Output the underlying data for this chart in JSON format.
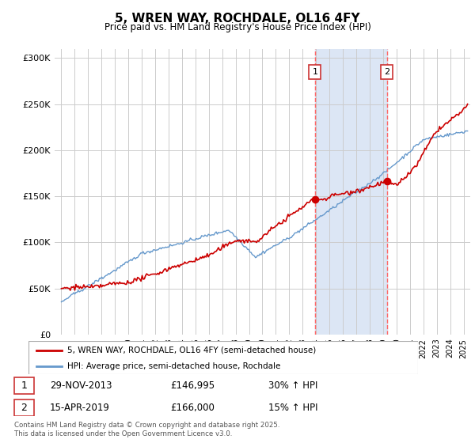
{
  "title": "5, WREN WAY, ROCHDALE, OL16 4FY",
  "subtitle": "Price paid vs. HM Land Registry's House Price Index (HPI)",
  "ylabel_ticks": [
    "£0",
    "£50K",
    "£100K",
    "£150K",
    "£200K",
    "£250K",
    "£300K"
  ],
  "ytick_values": [
    0,
    50000,
    100000,
    150000,
    200000,
    250000,
    300000
  ],
  "ylim": [
    0,
    310000
  ],
  "xlim_start": 1994.5,
  "xlim_end": 2025.5,
  "red_color": "#cc0000",
  "blue_color": "#6699cc",
  "shaded_color": "#dce6f5",
  "marker1_x": 2013.92,
  "marker2_x": 2019.29,
  "marker1_y": 146995,
  "marker2_y": 166000,
  "legend1": "5, WREN WAY, ROCHDALE, OL16 4FY (semi-detached house)",
  "legend2": "HPI: Average price, semi-detached house, Rochdale",
  "table_rows": [
    {
      "num": "1",
      "date": "29-NOV-2013",
      "price": "£146,995",
      "change": "30% ↑ HPI"
    },
    {
      "num": "2",
      "date": "15-APR-2019",
      "price": "£166,000",
      "change": "15% ↑ HPI"
    }
  ],
  "footer": "Contains HM Land Registry data © Crown copyright and database right 2025.\nThis data is licensed under the Open Government Licence v3.0.",
  "background_color": "#ffffff",
  "grid_color": "#cccccc"
}
